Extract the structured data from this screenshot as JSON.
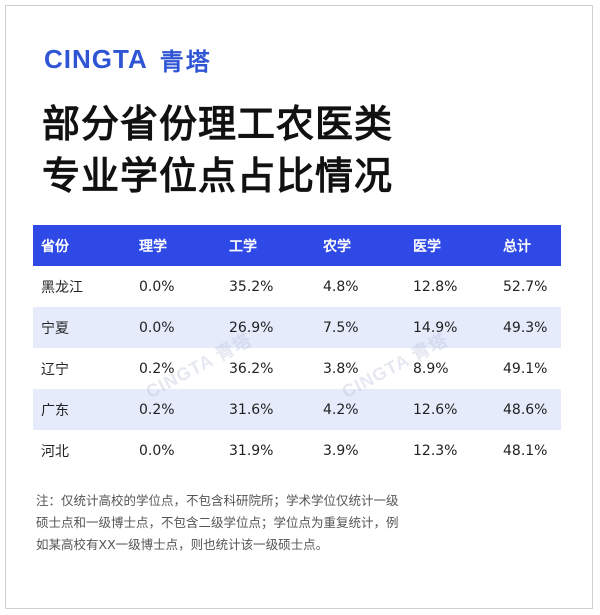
{
  "brand": {
    "en": "CINGTA",
    "cn": "青塔"
  },
  "title": {
    "line1": "部分省份理工农医类",
    "line2": "专业学位点占比情况"
  },
  "table": {
    "headers": [
      "省份",
      "理学",
      "工学",
      "农学",
      "医学",
      "总计"
    ],
    "rows": [
      [
        "黑龙江",
        "0.0%",
        "35.2%",
        "4.8%",
        "12.8%",
        "52.7%"
      ],
      [
        "宁夏",
        "0.0%",
        "26.9%",
        "7.5%",
        "14.9%",
        "49.3%"
      ],
      [
        "辽宁",
        "0.2%",
        "36.2%",
        "3.8%",
        "8.9%",
        "49.1%"
      ],
      [
        "广东",
        "0.2%",
        "31.6%",
        "4.2%",
        "12.6%",
        "48.6%"
      ],
      [
        "河北",
        "0.0%",
        "31.9%",
        "3.9%",
        "12.3%",
        "48.1%"
      ]
    ]
  },
  "watermark": {
    "text": "CINGTA 青塔"
  },
  "note": {
    "line1": "注：仅统计高校的学位点，不包含科研院所；学术学位仅统计一级",
    "line2": "硕士点和一级博士点，不包含二级学位点；学位点为重复统计，例",
    "line3": "如某高校有XX一级博士点，则也统计该一级硕士点。"
  },
  "colors": {
    "brand": "#2f55d4",
    "header_bg": "#2f49e6",
    "alt_row": "#e6ebfb"
  }
}
